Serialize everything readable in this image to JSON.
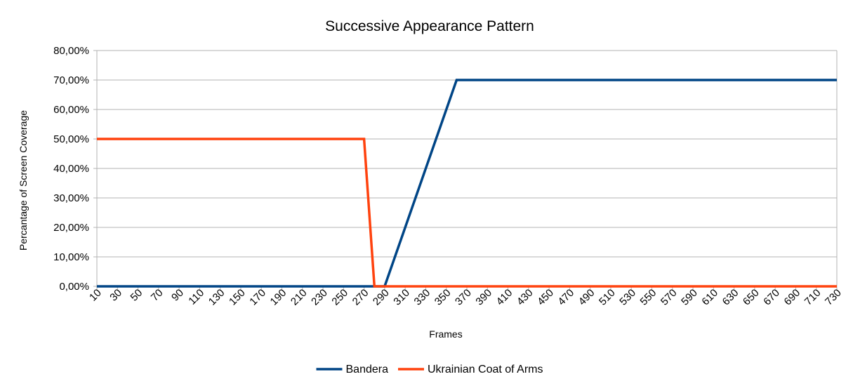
{
  "chart_data": {
    "type": "line",
    "title": "Successive Appearance Pattern",
    "xlabel": "Frames",
    "ylabel": "Percantage of Screen Coverage",
    "ylim": [
      0,
      80
    ],
    "y_ticks": [
      "0,00%",
      "10,00%",
      "20,00%",
      "30,00%",
      "40,00%",
      "50,00%",
      "60,00%",
      "70,00%",
      "80,00%"
    ],
    "x_ticks": [
      "10",
      "30",
      "50",
      "70",
      "90",
      "110",
      "130",
      "150",
      "170",
      "190",
      "210",
      "230",
      "250",
      "270",
      "290",
      "310",
      "330",
      "350",
      "370",
      "390",
      "410",
      "430",
      "450",
      "470",
      "490",
      "510",
      "530",
      "550",
      "570",
      "590",
      "610",
      "630",
      "650",
      "670",
      "690",
      "710",
      "730"
    ],
    "xlim": [
      10,
      730
    ],
    "grid": true,
    "legend_position": "bottom",
    "series": [
      {
        "name": "Bandera",
        "color": "#004586",
        "points": [
          [
            10,
            0
          ],
          [
            280,
            0
          ],
          [
            290,
            0
          ],
          [
            360,
            70
          ],
          [
            730,
            70
          ]
        ]
      },
      {
        "name": "Ukrainian Coat of Arms",
        "color": "#ff420e",
        "points": [
          [
            10,
            50
          ],
          [
            270,
            50
          ],
          [
            280,
            0
          ],
          [
            730,
            0
          ]
        ]
      }
    ]
  }
}
